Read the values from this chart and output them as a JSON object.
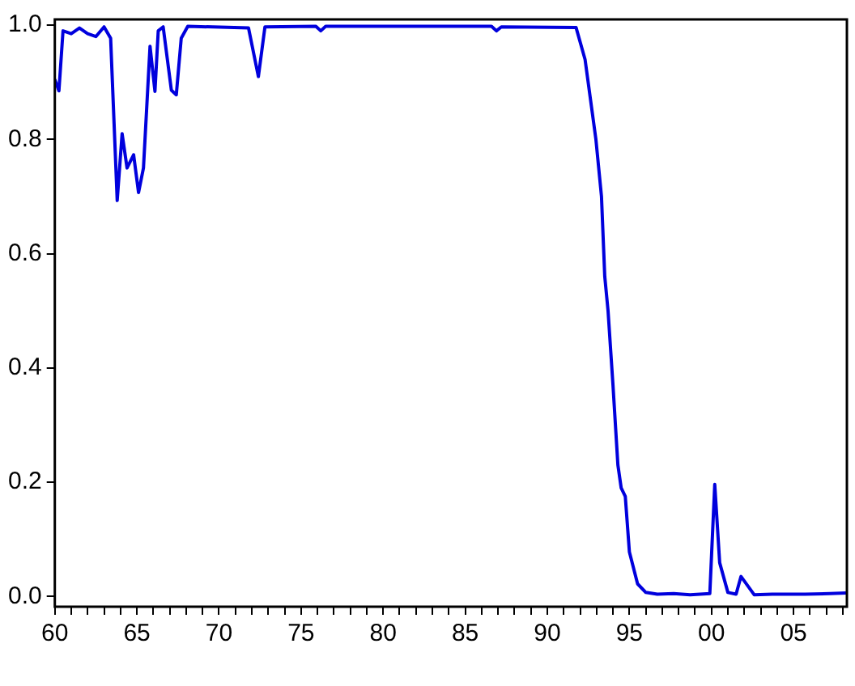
{
  "chart_data": {
    "type": "line",
    "x": [
      1960,
      1960.25,
      1960.5,
      1961,
      1961.5,
      1962,
      1962.5,
      1963,
      1963.4,
      1963.8,
      1964.1,
      1964.4,
      1964.8,
      1965.1,
      1965.4,
      1965.8,
      1966.1,
      1966.3,
      1966.6,
      1967.1,
      1967.4,
      1967.7,
      1968.1,
      1971.8,
      1972.4,
      1972.8,
      1975.9,
      1976.2,
      1976.5,
      1986.6,
      1986.9,
      1987.2,
      1991.75,
      1992.3,
      1992.96,
      1993.3,
      1993.5,
      1993.7,
      1994,
      1994.3,
      1994.5,
      1994.75,
      1995,
      1995.5,
      1996,
      1996.7,
      1997.7,
      1998.7,
      1999.9,
      2000.2,
      2000.5,
      2001,
      2001.5,
      2001.8,
      2002.6,
      2003.7,
      2005.7,
      2007.2,
      2008.2
    ],
    "series": [
      {
        "color": "#0000dd",
        "values": [
          0.905,
          0.885,
          0.99,
          0.985,
          0.995,
          0.985,
          0.98,
          0.997,
          0.977,
          0.693,
          0.81,
          0.75,
          0.773,
          0.707,
          0.75,
          0.963,
          0.884,
          0.99,
          0.997,
          0.886,
          0.878,
          0.977,
          0.998,
          0.995,
          0.91,
          0.997,
          0.998,
          0.99,
          0.998,
          0.998,
          0.99,
          0.997,
          0.996,
          0.94,
          0.8,
          0.7,
          0.56,
          0.5,
          0.37,
          0.23,
          0.19,
          0.175,
          0.078,
          0.022,
          0.007,
          0.004,
          0.005,
          0.003,
          0.005,
          0.196,
          0.059,
          0.007,
          0.004,
          0.035,
          0.003,
          0.004,
          0.004,
          0.005,
          0.006
        ]
      }
    ],
    "xlim": [
      1960,
      2008.25
    ],
    "xticks": [
      {
        "value": 1960,
        "label": "60"
      },
      {
        "value": 1961,
        "label": null
      },
      {
        "value": 1962,
        "label": null
      },
      {
        "value": 1963,
        "label": null
      },
      {
        "value": 1964,
        "label": null
      },
      {
        "value": 1965,
        "label": "65"
      },
      {
        "value": 1966,
        "label": null
      },
      {
        "value": 1967,
        "label": null
      },
      {
        "value": 1968,
        "label": null
      },
      {
        "value": 1969,
        "label": null
      },
      {
        "value": 1970,
        "label": "70"
      },
      {
        "value": 1971,
        "label": null
      },
      {
        "value": 1972,
        "label": null
      },
      {
        "value": 1973,
        "label": null
      },
      {
        "value": 1974,
        "label": null
      },
      {
        "value": 1975,
        "label": "75"
      },
      {
        "value": 1976,
        "label": null
      },
      {
        "value": 1977,
        "label": null
      },
      {
        "value": 1978,
        "label": null
      },
      {
        "value": 1979,
        "label": null
      },
      {
        "value": 1980,
        "label": "80"
      },
      {
        "value": 1981,
        "label": null
      },
      {
        "value": 1982,
        "label": null
      },
      {
        "value": 1983,
        "label": null
      },
      {
        "value": 1984,
        "label": null
      },
      {
        "value": 1985,
        "label": "85"
      },
      {
        "value": 1986,
        "label": null
      },
      {
        "value": 1987,
        "label": null
      },
      {
        "value": 1988,
        "label": null
      },
      {
        "value": 1989,
        "label": null
      },
      {
        "value": 1990,
        "label": "90"
      },
      {
        "value": 1991,
        "label": null
      },
      {
        "value": 1992,
        "label": null
      },
      {
        "value": 1993,
        "label": null
      },
      {
        "value": 1994,
        "label": null
      },
      {
        "value": 1995,
        "label": "95"
      },
      {
        "value": 1996,
        "label": null
      },
      {
        "value": 1997,
        "label": null
      },
      {
        "value": 1998,
        "label": null
      },
      {
        "value": 1999,
        "label": null
      },
      {
        "value": 2000,
        "label": "00"
      },
      {
        "value": 2001,
        "label": null
      },
      {
        "value": 2002,
        "label": null
      },
      {
        "value": 2003,
        "label": null
      },
      {
        "value": 2004,
        "label": null
      },
      {
        "value": 2005,
        "label": "05"
      },
      {
        "value": 2006,
        "label": null
      },
      {
        "value": 2007,
        "label": null
      },
      {
        "value": 2008,
        "label": null
      }
    ],
    "ylim": [
      -0.018,
      1.01
    ],
    "yticks": [
      {
        "value": 0,
        "label": "0.0"
      },
      {
        "value": 0.2,
        "label": "0.2"
      },
      {
        "value": 0.4,
        "label": "0.4"
      },
      {
        "value": 0.6,
        "label": "0.6"
      },
      {
        "value": 0.8,
        "label": "0.8"
      },
      {
        "value": 1,
        "label": "1.0"
      }
    ],
    "grid": false,
    "legend": false,
    "marker": "none",
    "line_style": "solid"
  }
}
